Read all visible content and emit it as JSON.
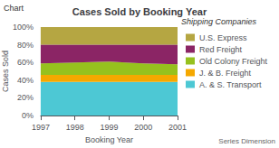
{
  "chart_data": {
    "type": "area",
    "title": "Cases Sold by Booking Year",
    "x_label": "Booking Year",
    "y_label": "Cases Sold",
    "legend_title": "Shipping Companies",
    "annotations": [
      "Chart",
      "Series Dimension"
    ],
    "categories": [
      "1997",
      "1998",
      "1999",
      "2000",
      "2001"
    ],
    "series": [
      {
        "name": "A. & S. Transport",
        "color": "#4dc8d4",
        "values": [
          38,
          38,
          38,
          38,
          38
        ]
      },
      {
        "name": "J. & B. Freight",
        "color": "#f5a800",
        "values": [
          8,
          8,
          8,
          8,
          8
        ]
      },
      {
        "name": "Old Colony Freight",
        "color": "#96c11e",
        "values": [
          13,
          14,
          15,
          13,
          12
        ]
      },
      {
        "name": "Red Freight",
        "color": "#8b2565",
        "values": [
          21,
          20,
          19,
          21,
          22
        ]
      },
      {
        "name": "U.S. Express",
        "color": "#b5a642",
        "values": [
          20,
          20,
          20,
          20,
          20
        ]
      }
    ],
    "stacked": true,
    "ylim": [
      0,
      100
    ],
    "yticks": [
      {
        "value": 0,
        "label": "0%"
      },
      {
        "value": 20,
        "label": "20%"
      },
      {
        "value": 40,
        "label": "40%"
      },
      {
        "value": 60,
        "label": "60%"
      },
      {
        "value": 80,
        "label": "80%"
      },
      {
        "value": 100,
        "label": "100%"
      }
    ],
    "grid": true,
    "legend": "right"
  }
}
